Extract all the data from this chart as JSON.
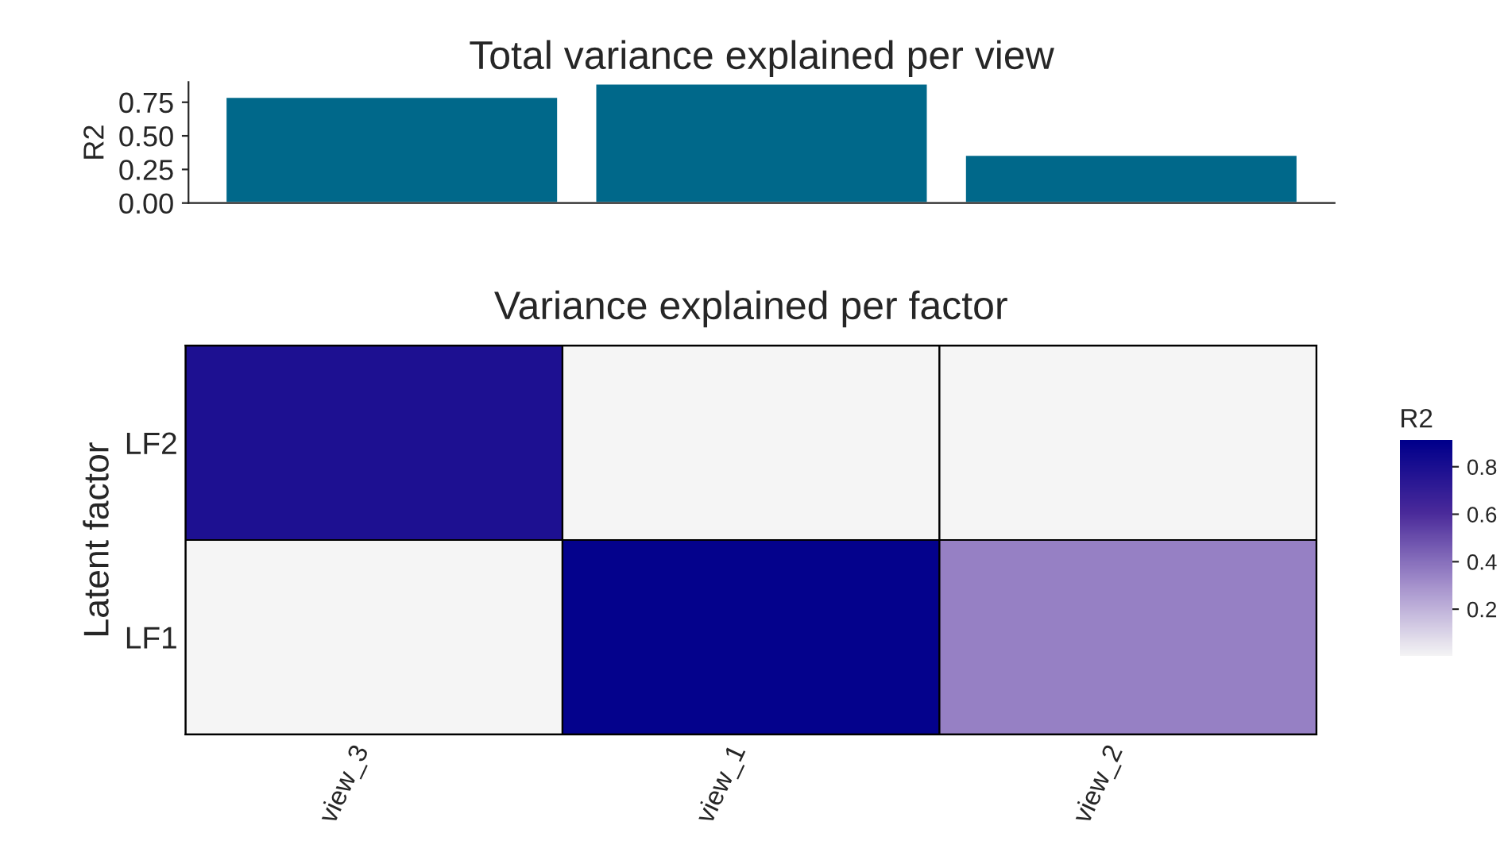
{
  "chart_data": [
    {
      "type": "bar",
      "title": "Total variance explained per view",
      "ylabel": "R2",
      "categories": [
        null,
        null,
        null
      ],
      "values": [
        0.79,
        0.89,
        0.36
      ],
      "color": "#00688a",
      "ylim": [
        0,
        0.9
      ],
      "yticks": [
        {
          "value": 0,
          "label": "0.00"
        },
        {
          "value": 0.25,
          "label": "0.25"
        },
        {
          "value": 0.5,
          "label": "0.50"
        },
        {
          "value": 0.75,
          "label": "0.75"
        }
      ],
      "tick_labels": "y",
      "grid": false
    },
    {
      "type": "heatmap",
      "title": "Variance explained per factor",
      "ylabel": "Latent factor",
      "clabel": "R2",
      "categories": [
        "view_3",
        "view_1",
        "view_2"
      ],
      "y_categories": [
        "LF2",
        "LF1"
      ],
      "cells": [
        [
          0.79,
          0.0,
          0.0
        ],
        [
          0.0,
          0.89,
          0.35
        ]
      ],
      "clim": [
        0,
        0.91
      ],
      "cticks": [
        0.2,
        0.4,
        0.6,
        0.8
      ]
    }
  ]
}
